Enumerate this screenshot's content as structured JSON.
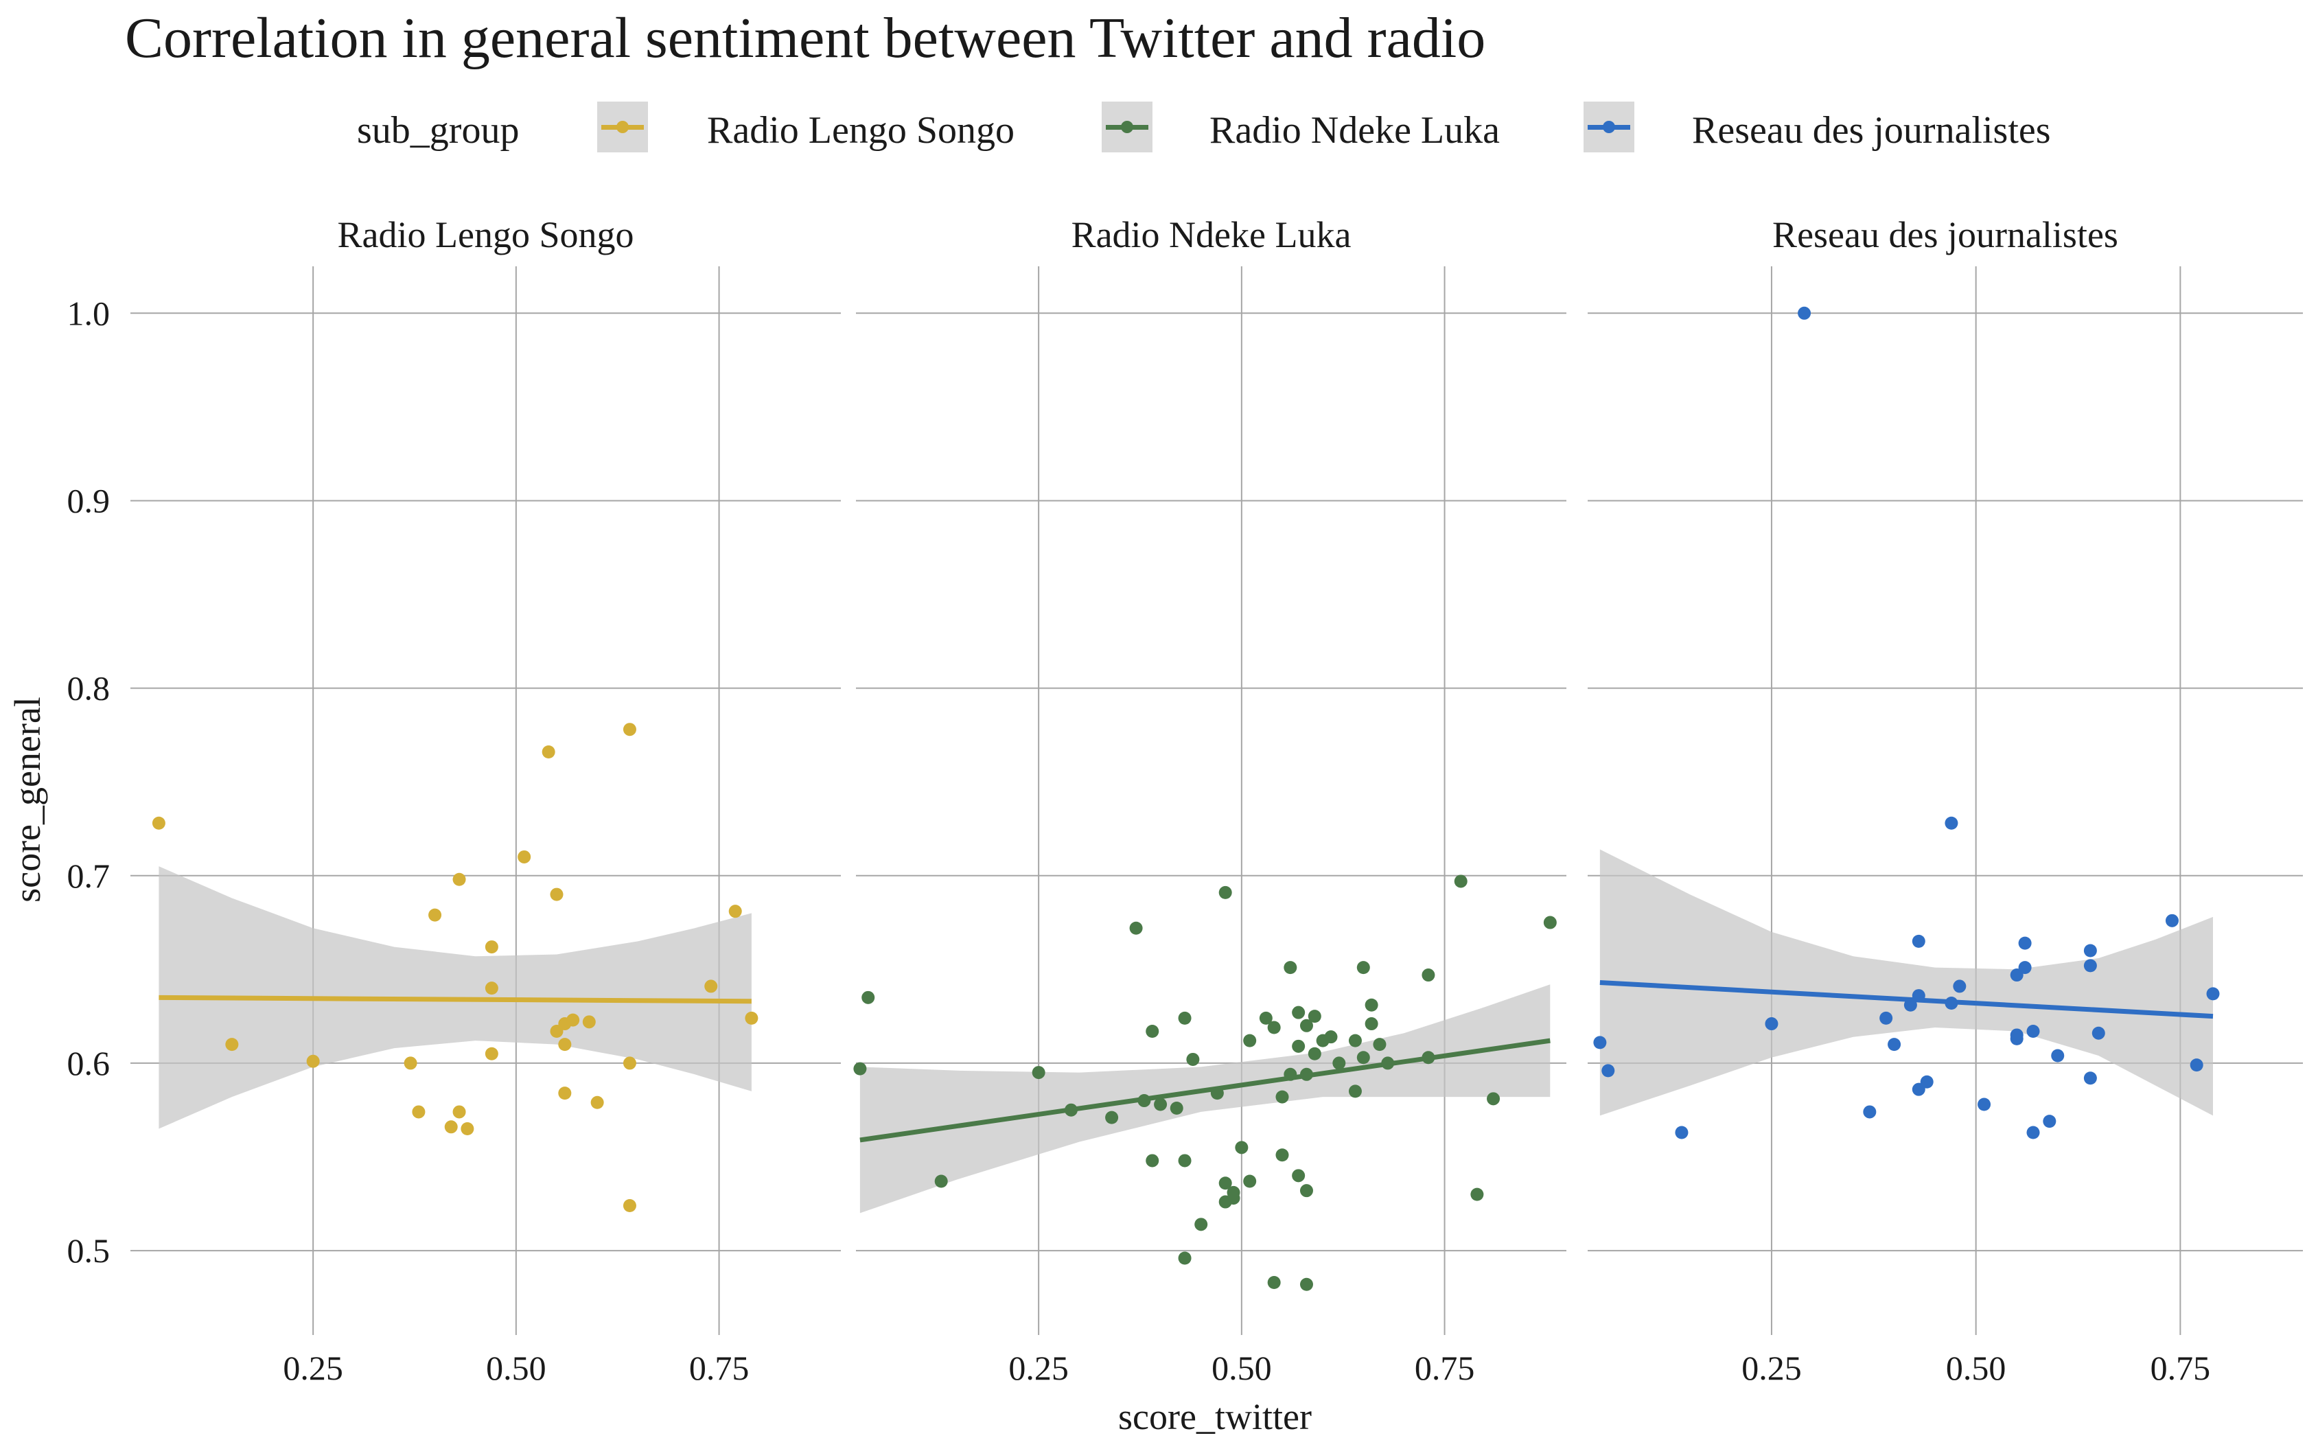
{
  "title": "Correlation in general sentiment between Twitter and radio",
  "legend": {
    "title": "sub_group",
    "position": "top",
    "entries": [
      {
        "label": "Radio Lengo Songo",
        "color": "#d4af37"
      },
      {
        "label": "Radio Ndeke Luka",
        "color": "#4a7a48"
      },
      {
        "label": "Reseau des journalistes",
        "color": "#2f6ec4"
      }
    ]
  },
  "chart_data": {
    "type": "scatter",
    "title": "Correlation in general sentiment between Twitter and radio",
    "xlabel": "score_twitter",
    "ylabel": "score_general",
    "ylim": [
      0.455,
      1.025
    ],
    "y_ticks": [
      0.5,
      0.6,
      0.7,
      0.8,
      0.9,
      1.0
    ],
    "y_tick_labels": [
      "0.5",
      "0.6",
      "0.7",
      "0.8",
      "0.9",
      "1.0"
    ],
    "x_ticks": [
      0.25,
      0.5,
      0.75
    ],
    "x_tick_labels": [
      "0.25",
      "0.50",
      "0.75"
    ],
    "grid": true,
    "facets": [
      {
        "name": "Radio Lengo Songo",
        "color": "#d4af37",
        "xlim": [
          0.025,
          0.9
        ],
        "points": [
          [
            0.06,
            0.728
          ],
          [
            0.15,
            0.61
          ],
          [
            0.25,
            0.601
          ],
          [
            0.37,
            0.6
          ],
          [
            0.38,
            0.574
          ],
          [
            0.4,
            0.679
          ],
          [
            0.42,
            0.566
          ],
          [
            0.43,
            0.574
          ],
          [
            0.43,
            0.698
          ],
          [
            0.44,
            0.565
          ],
          [
            0.47,
            0.662
          ],
          [
            0.47,
            0.64
          ],
          [
            0.47,
            0.605
          ],
          [
            0.51,
            0.71
          ],
          [
            0.54,
            0.766
          ],
          [
            0.55,
            0.69
          ],
          [
            0.55,
            0.617
          ],
          [
            0.56,
            0.584
          ],
          [
            0.56,
            0.61
          ],
          [
            0.56,
            0.621
          ],
          [
            0.57,
            0.623
          ],
          [
            0.59,
            0.622
          ],
          [
            0.6,
            0.579
          ],
          [
            0.64,
            0.778
          ],
          [
            0.64,
            0.6
          ],
          [
            0.64,
            0.524
          ],
          [
            0.74,
            0.641
          ],
          [
            0.77,
            0.681
          ],
          [
            0.79,
            0.624
          ]
        ],
        "fit": {
          "x": [
            0.06,
            0.79
          ],
          "y": [
            0.635,
            0.633
          ]
        },
        "band": {
          "x": [
            0.06,
            0.15,
            0.25,
            0.35,
            0.45,
            0.55,
            0.65,
            0.72,
            0.79
          ],
          "upper": [
            0.705,
            0.688,
            0.672,
            0.662,
            0.657,
            0.658,
            0.665,
            0.672,
            0.68
          ],
          "lower": [
            0.565,
            0.582,
            0.598,
            0.608,
            0.612,
            0.61,
            0.602,
            0.594,
            0.585
          ]
        }
      },
      {
        "name": "Radio Ndeke Luka",
        "color": "#4a7a48",
        "xlim": [
          0.025,
          0.9
        ],
        "points": [
          [
            0.03,
            0.597
          ],
          [
            0.04,
            0.635
          ],
          [
            0.13,
            0.537
          ],
          [
            0.25,
            0.595
          ],
          [
            0.29,
            0.575
          ],
          [
            0.34,
            0.571
          ],
          [
            0.37,
            0.672
          ],
          [
            0.38,
            0.58
          ],
          [
            0.39,
            0.548
          ],
          [
            0.39,
            0.617
          ],
          [
            0.4,
            0.578
          ],
          [
            0.42,
            0.576
          ],
          [
            0.43,
            0.624
          ],
          [
            0.43,
            0.548
          ],
          [
            0.43,
            0.496
          ],
          [
            0.44,
            0.602
          ],
          [
            0.45,
            0.514
          ],
          [
            0.47,
            0.584
          ],
          [
            0.48,
            0.526
          ],
          [
            0.48,
            0.536
          ],
          [
            0.48,
            0.691
          ],
          [
            0.49,
            0.531
          ],
          [
            0.49,
            0.528
          ],
          [
            0.5,
            0.555
          ],
          [
            0.51,
            0.537
          ],
          [
            0.51,
            0.612
          ],
          [
            0.53,
            0.624
          ],
          [
            0.54,
            0.619
          ],
          [
            0.54,
            0.483
          ],
          [
            0.55,
            0.582
          ],
          [
            0.55,
            0.551
          ],
          [
            0.56,
            0.651
          ],
          [
            0.56,
            0.594
          ],
          [
            0.57,
            0.627
          ],
          [
            0.57,
            0.54
          ],
          [
            0.57,
            0.609
          ],
          [
            0.58,
            0.532
          ],
          [
            0.58,
            0.482
          ],
          [
            0.58,
            0.62
          ],
          [
            0.58,
            0.594
          ],
          [
            0.59,
            0.625
          ],
          [
            0.59,
            0.605
          ],
          [
            0.6,
            0.612
          ],
          [
            0.61,
            0.614
          ],
          [
            0.62,
            0.6
          ],
          [
            0.64,
            0.612
          ],
          [
            0.64,
            0.585
          ],
          [
            0.65,
            0.651
          ],
          [
            0.65,
            0.603
          ],
          [
            0.66,
            0.631
          ],
          [
            0.66,
            0.621
          ],
          [
            0.67,
            0.61
          ],
          [
            0.68,
            0.6
          ],
          [
            0.73,
            0.647
          ],
          [
            0.73,
            0.603
          ],
          [
            0.77,
            0.697
          ],
          [
            0.79,
            0.53
          ],
          [
            0.81,
            0.581
          ],
          [
            0.88,
            0.675
          ]
        ],
        "fit": {
          "x": [
            0.03,
            0.88
          ],
          "y": [
            0.559,
            0.612
          ]
        },
        "band": {
          "x": [
            0.03,
            0.15,
            0.3,
            0.45,
            0.6,
            0.7,
            0.8,
            0.88
          ],
          "upper": [
            0.598,
            0.596,
            0.595,
            0.598,
            0.606,
            0.616,
            0.63,
            0.642
          ],
          "lower": [
            0.52,
            0.538,
            0.558,
            0.574,
            0.582,
            0.582,
            0.582,
            0.582
          ]
        }
      },
      {
        "name": "Reseau des journalistes",
        "color": "#2f6ec4",
        "xlim": [
          0.025,
          0.9
        ],
        "points": [
          [
            0.04,
            0.611
          ],
          [
            0.05,
            0.596
          ],
          [
            0.14,
            0.563
          ],
          [
            0.25,
            0.621
          ],
          [
            0.29,
            1.0
          ],
          [
            0.37,
            0.574
          ],
          [
            0.39,
            0.624
          ],
          [
            0.4,
            0.61
          ],
          [
            0.42,
            0.631
          ],
          [
            0.43,
            0.636
          ],
          [
            0.43,
            0.665
          ],
          [
            0.43,
            0.586
          ],
          [
            0.44,
            0.59
          ],
          [
            0.47,
            0.632
          ],
          [
            0.47,
            0.728
          ],
          [
            0.48,
            0.641
          ],
          [
            0.51,
            0.578
          ],
          [
            0.55,
            0.613
          ],
          [
            0.55,
            0.615
          ],
          [
            0.55,
            0.647
          ],
          [
            0.56,
            0.651
          ],
          [
            0.56,
            0.664
          ],
          [
            0.57,
            0.563
          ],
          [
            0.57,
            0.617
          ],
          [
            0.59,
            0.569
          ],
          [
            0.6,
            0.604
          ],
          [
            0.64,
            0.592
          ],
          [
            0.64,
            0.66
          ],
          [
            0.64,
            0.652
          ],
          [
            0.65,
            0.616
          ],
          [
            0.74,
            0.676
          ],
          [
            0.77,
            0.599
          ],
          [
            0.79,
            0.637
          ]
        ],
        "fit": {
          "x": [
            0.04,
            0.79
          ],
          "y": [
            0.643,
            0.625
          ]
        },
        "band": {
          "x": [
            0.04,
            0.15,
            0.25,
            0.35,
            0.45,
            0.55,
            0.65,
            0.72,
            0.79
          ],
          "upper": [
            0.714,
            0.69,
            0.67,
            0.657,
            0.651,
            0.65,
            0.656,
            0.666,
            0.678
          ],
          "lower": [
            0.572,
            0.588,
            0.603,
            0.614,
            0.619,
            0.617,
            0.604,
            0.588,
            0.572
          ]
        }
      }
    ]
  }
}
